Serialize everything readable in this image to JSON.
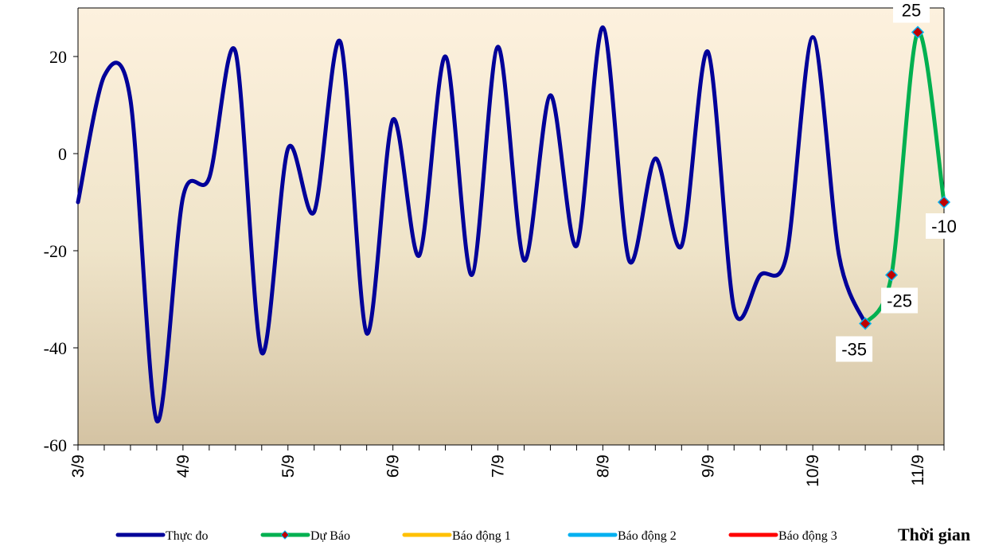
{
  "chart_data": {
    "type": "line",
    "y_ticks": [
      20,
      0,
      -20,
      -40,
      -60
    ],
    "ylim": [
      -60,
      30
    ],
    "x_tick_labels": [
      "3/9",
      "4/9",
      "5/9",
      "6/9",
      "7/9",
      "8/9",
      "9/9",
      "10/9",
      "11/9"
    ],
    "xlabel": "Thời gian",
    "grid": false,
    "series": [
      {
        "name": "Thực đo",
        "color": "#000099",
        "x": [
          0,
          0.25,
          0.5,
          0.75,
          1,
          1.25,
          1.5,
          1.75,
          2,
          2.25,
          2.5,
          2.75,
          3,
          3.25,
          3.5,
          3.75,
          4,
          4.25,
          4.5,
          4.75,
          5,
          5.25,
          5.5,
          5.75,
          6,
          6.25,
          6.5,
          6.75,
          7,
          7.25,
          7.5
        ],
        "values": [
          -10,
          16,
          11,
          -55,
          -9,
          -5,
          21,
          -41,
          1,
          -12,
          23,
          -37,
          7,
          -21,
          20,
          -25,
          22,
          -22,
          12,
          -19,
          26,
          -22,
          -1,
          -19,
          21,
          -32,
          -25,
          -21,
          24,
          -21,
          -35
        ]
      },
      {
        "name": "Dự Báo",
        "color": "#00B050",
        "x": [
          7.5,
          7.75,
          8,
          8.25
        ],
        "values": [
          -35,
          -25,
          25,
          -10
        ],
        "data_labels": [
          "-35",
          "-25",
          "25",
          "-10"
        ]
      },
      {
        "name": "Báo động 1",
        "color": "#FFC000",
        "x": [],
        "values": []
      },
      {
        "name": "Báo động 2",
        "color": "#00B0F0",
        "x": [],
        "values": []
      },
      {
        "name": "Báo động 3",
        "color": "#FF0000",
        "x": [],
        "values": []
      }
    ],
    "legend_position": "bottom"
  }
}
